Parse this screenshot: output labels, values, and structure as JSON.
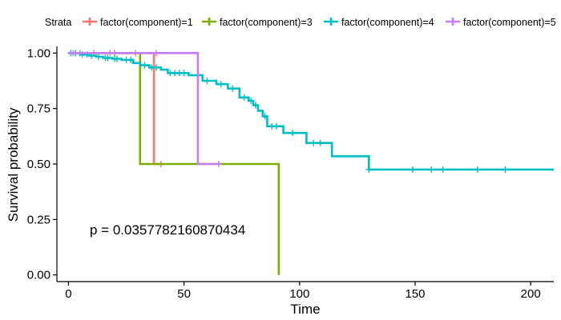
{
  "chart_data": {
    "type": "line",
    "subtype": "kaplan-meier step curve",
    "xlabel": "Time",
    "ylabel": "Survival probability",
    "xlim": [
      -5,
      210
    ],
    "ylim": [
      -0.03,
      1.03
    ],
    "x_ticks": [
      0,
      50,
      100,
      150,
      200
    ],
    "x_tick_labels": [
      "0",
      "50",
      "100",
      "150",
      "200"
    ],
    "y_ticks": [
      0,
      0.25,
      0.5,
      0.75,
      1.0
    ],
    "y_tick_labels": [
      "0.00",
      "0.25",
      "0.50",
      "0.75",
      "1.00"
    ],
    "grid": false,
    "legend": {
      "position": "top",
      "title": "Strata",
      "entries": [
        "factor(component)=1",
        "factor(component)=3",
        "factor(component)=4",
        "factor(component)=5"
      ]
    },
    "annotation": "p = 0.0357782160870434",
    "series": [
      {
        "name": "factor(component)=1",
        "color": "#F8766D",
        "steps": [
          [
            0,
            1.0
          ],
          [
            37,
            1.0
          ],
          [
            37,
            0.5
          ],
          [
            40,
            0.5
          ]
        ],
        "censors": [
          [
            5,
            1.0
          ],
          [
            11,
            1.0
          ],
          [
            20,
            1.0
          ],
          [
            29,
            1.0
          ],
          [
            40,
            0.5
          ]
        ]
      },
      {
        "name": "factor(component)=3",
        "color": "#7CAE00",
        "steps": [
          [
            0,
            1.0
          ],
          [
            31,
            1.0
          ],
          [
            31,
            0.5
          ],
          [
            91,
            0.5
          ],
          [
            91,
            0.0
          ]
        ],
        "censors": []
      },
      {
        "name": "factor(component)=4",
        "color": "#00BFC4",
        "steps": [
          [
            0,
            1.0
          ],
          [
            5,
            1.0
          ],
          [
            5,
            0.993
          ],
          [
            9,
            0.993
          ],
          [
            9,
            0.988
          ],
          [
            12,
            0.988
          ],
          [
            12,
            0.983
          ],
          [
            15,
            0.983
          ],
          [
            15,
            0.978
          ],
          [
            19,
            0.978
          ],
          [
            19,
            0.974
          ],
          [
            23,
            0.974
          ],
          [
            23,
            0.969
          ],
          [
            28,
            0.969
          ],
          [
            28,
            0.955
          ],
          [
            31,
            0.955
          ],
          [
            31,
            0.945
          ],
          [
            35,
            0.945
          ],
          [
            35,
            0.935
          ],
          [
            40,
            0.935
          ],
          [
            40,
            0.925
          ],
          [
            43,
            0.925
          ],
          [
            43,
            0.91
          ],
          [
            52,
            0.91
          ],
          [
            52,
            0.9
          ],
          [
            58,
            0.9
          ],
          [
            58,
            0.875
          ],
          [
            64,
            0.875
          ],
          [
            64,
            0.86
          ],
          [
            69,
            0.86
          ],
          [
            69,
            0.84
          ],
          [
            74,
            0.84
          ],
          [
            74,
            0.8
          ],
          [
            78,
            0.8
          ],
          [
            78,
            0.785
          ],
          [
            80,
            0.785
          ],
          [
            80,
            0.765
          ],
          [
            82,
            0.765
          ],
          [
            82,
            0.74
          ],
          [
            84,
            0.74
          ],
          [
            84,
            0.715
          ],
          [
            86,
            0.715
          ],
          [
            86,
            0.67
          ],
          [
            93,
            0.67
          ],
          [
            93,
            0.64
          ],
          [
            103,
            0.64
          ],
          [
            103,
            0.595
          ],
          [
            114,
            0.595
          ],
          [
            114,
            0.535
          ],
          [
            130,
            0.535
          ],
          [
            130,
            0.475
          ],
          [
            210,
            0.475
          ]
        ],
        "censors": [
          [
            1,
            1.0
          ],
          [
            3,
            1.0
          ],
          [
            6,
            0.993
          ],
          [
            8,
            0.993
          ],
          [
            10,
            0.988
          ],
          [
            13,
            0.983
          ],
          [
            16,
            0.978
          ],
          [
            17,
            0.978
          ],
          [
            20,
            0.974
          ],
          [
            21,
            0.974
          ],
          [
            25,
            0.969
          ],
          [
            27,
            0.969
          ],
          [
            33,
            0.945
          ],
          [
            36,
            0.935
          ],
          [
            38,
            0.935
          ],
          [
            44,
            0.91
          ],
          [
            46,
            0.91
          ],
          [
            48,
            0.91
          ],
          [
            50,
            0.91
          ],
          [
            56,
            0.9
          ],
          [
            60,
            0.875
          ],
          [
            66,
            0.86
          ],
          [
            71,
            0.84
          ],
          [
            76,
            0.8
          ],
          [
            79,
            0.785
          ],
          [
            81,
            0.765
          ],
          [
            85,
            0.715
          ],
          [
            88,
            0.67
          ],
          [
            90,
            0.67
          ],
          [
            97,
            0.64
          ],
          [
            106,
            0.595
          ],
          [
            109,
            0.595
          ],
          [
            130,
            0.475
          ],
          [
            149,
            0.475
          ],
          [
            157,
            0.475
          ],
          [
            162,
            0.475
          ],
          [
            177,
            0.475
          ],
          [
            189,
            0.475
          ]
        ]
      },
      {
        "name": "factor(component)=5",
        "color": "#C77CFF",
        "steps": [
          [
            0,
            1.0
          ],
          [
            56,
            1.0
          ],
          [
            56,
            0.5
          ],
          [
            65,
            0.5
          ]
        ],
        "censors": [
          [
            2,
            1.0
          ],
          [
            18,
            1.0
          ],
          [
            38,
            1.0
          ],
          [
            65,
            0.5
          ]
        ]
      }
    ]
  }
}
